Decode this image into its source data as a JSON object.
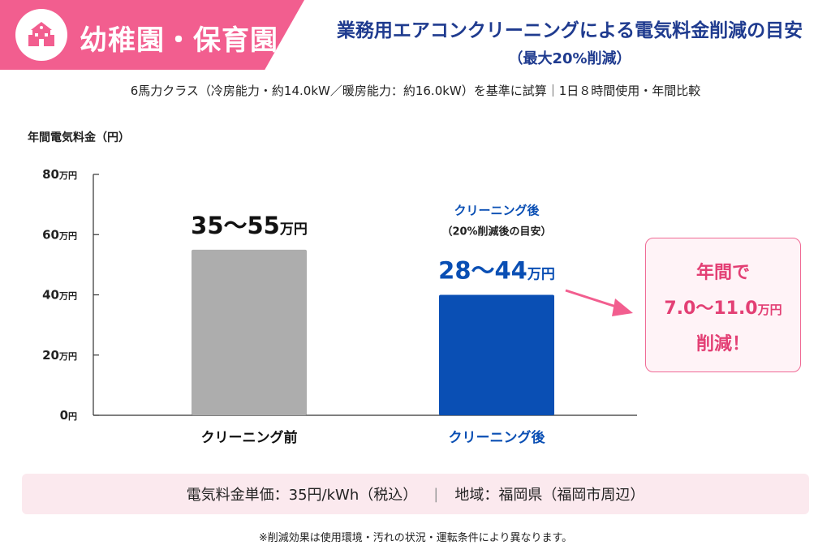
{
  "header": {
    "category": "幼稚園・保育園",
    "category_icon": "school-building-icon",
    "title": "業務用エアコンクリーニングによる電気料金削減の目安",
    "subtitle": "（最大20%削減）",
    "condition": "6馬力クラス（冷房能力・約14.0kW／暖房能力：約16.0kW）を基準に試算｜1日８時間使用・年間比較"
  },
  "colors": {
    "accent_pink": "#f25e8f",
    "title_blue": "#1f3b8f",
    "before_bar": "#adadad",
    "after_bar": "#0a4fb4",
    "saving_text": "#e33f74"
  },
  "chart_data": {
    "type": "bar",
    "ylabel": "年間電気料金（円）",
    "ylim": [
      0,
      80
    ],
    "yticks": [
      {
        "value": 0,
        "num": "0",
        "unit": "円"
      },
      {
        "value": 20,
        "num": "20",
        "unit": "万円"
      },
      {
        "value": 40,
        "num": "40",
        "unit": "万円"
      },
      {
        "value": 60,
        "num": "60",
        "unit": "万円"
      },
      {
        "value": 80,
        "num": "80",
        "unit": "万円"
      }
    ],
    "categories": [
      "クリーニング前",
      "クリーニング後"
    ],
    "bars": [
      {
        "category": "クリーニング前",
        "value": 55,
        "label_main": "35～55",
        "label_unit": "万円",
        "note_line1": "",
        "note_line2": ""
      },
      {
        "category": "クリーニング後",
        "value": 40,
        "label_main": "28～44",
        "label_unit": "万円",
        "note_line1": "クリーニング後",
        "note_line2": "（20%削減後の目安）"
      }
    ],
    "grid": false
  },
  "saving": {
    "line1": "年間で",
    "amount": "7.0～11.0",
    "unit": "万円",
    "line3": "削減！"
  },
  "info": {
    "price": "電気料金単価：35円/kWh（税込）",
    "separator": "|",
    "region": "地域：福岡県（福岡市周辺）"
  },
  "footnote": "※削減効果は使用環境・汚れの状況・運転条件により異なります。"
}
